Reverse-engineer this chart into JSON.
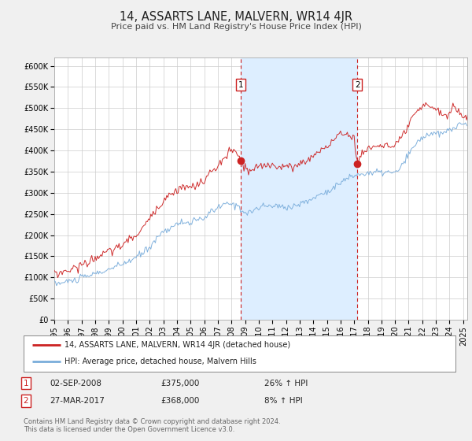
{
  "title": "14, ASSARTS LANE, MALVERN, WR14 4JR",
  "subtitle": "Price paid vs. HM Land Registry's House Price Index (HPI)",
  "ylim": [
    0,
    620000
  ],
  "xlim_start": 1995.0,
  "xlim_end": 2025.3,
  "yticks": [
    0,
    50000,
    100000,
    150000,
    200000,
    250000,
    300000,
    350000,
    400000,
    450000,
    500000,
    550000,
    600000
  ],
  "ytick_labels": [
    "£0",
    "£50K",
    "£100K",
    "£150K",
    "£200K",
    "£250K",
    "£300K",
    "£350K",
    "£400K",
    "£450K",
    "£500K",
    "£550K",
    "£600K"
  ],
  "xticks": [
    1995,
    1996,
    1997,
    1998,
    1999,
    2000,
    2001,
    2002,
    2003,
    2004,
    2005,
    2006,
    2007,
    2008,
    2009,
    2010,
    2011,
    2012,
    2013,
    2014,
    2015,
    2016,
    2017,
    2018,
    2019,
    2020,
    2021,
    2022,
    2023,
    2024,
    2025
  ],
  "sale1_x": 2008.67,
  "sale1_y": 375000,
  "sale2_x": 2017.23,
  "sale2_y": 368000,
  "sale1_date": "02-SEP-2008",
  "sale1_price": "£375,000",
  "sale1_hpi": "26% ↑ HPI",
  "sale2_date": "27-MAR-2017",
  "sale2_price": "£368,000",
  "sale2_hpi": "8% ↑ HPI",
  "red_line_color": "#cc2222",
  "blue_line_color": "#7aaddb",
  "shading_color": "#ddeeff",
  "grid_color": "#cccccc",
  "background_color": "#f0f0f0",
  "plot_bg_color": "#ffffff",
  "legend_label_red": "14, ASSARTS LANE, MALVERN, WR14 4JR (detached house)",
  "legend_label_blue": "HPI: Average price, detached house, Malvern Hills",
  "footer": "Contains HM Land Registry data © Crown copyright and database right 2024.\nThis data is licensed under the Open Government Licence v3.0."
}
